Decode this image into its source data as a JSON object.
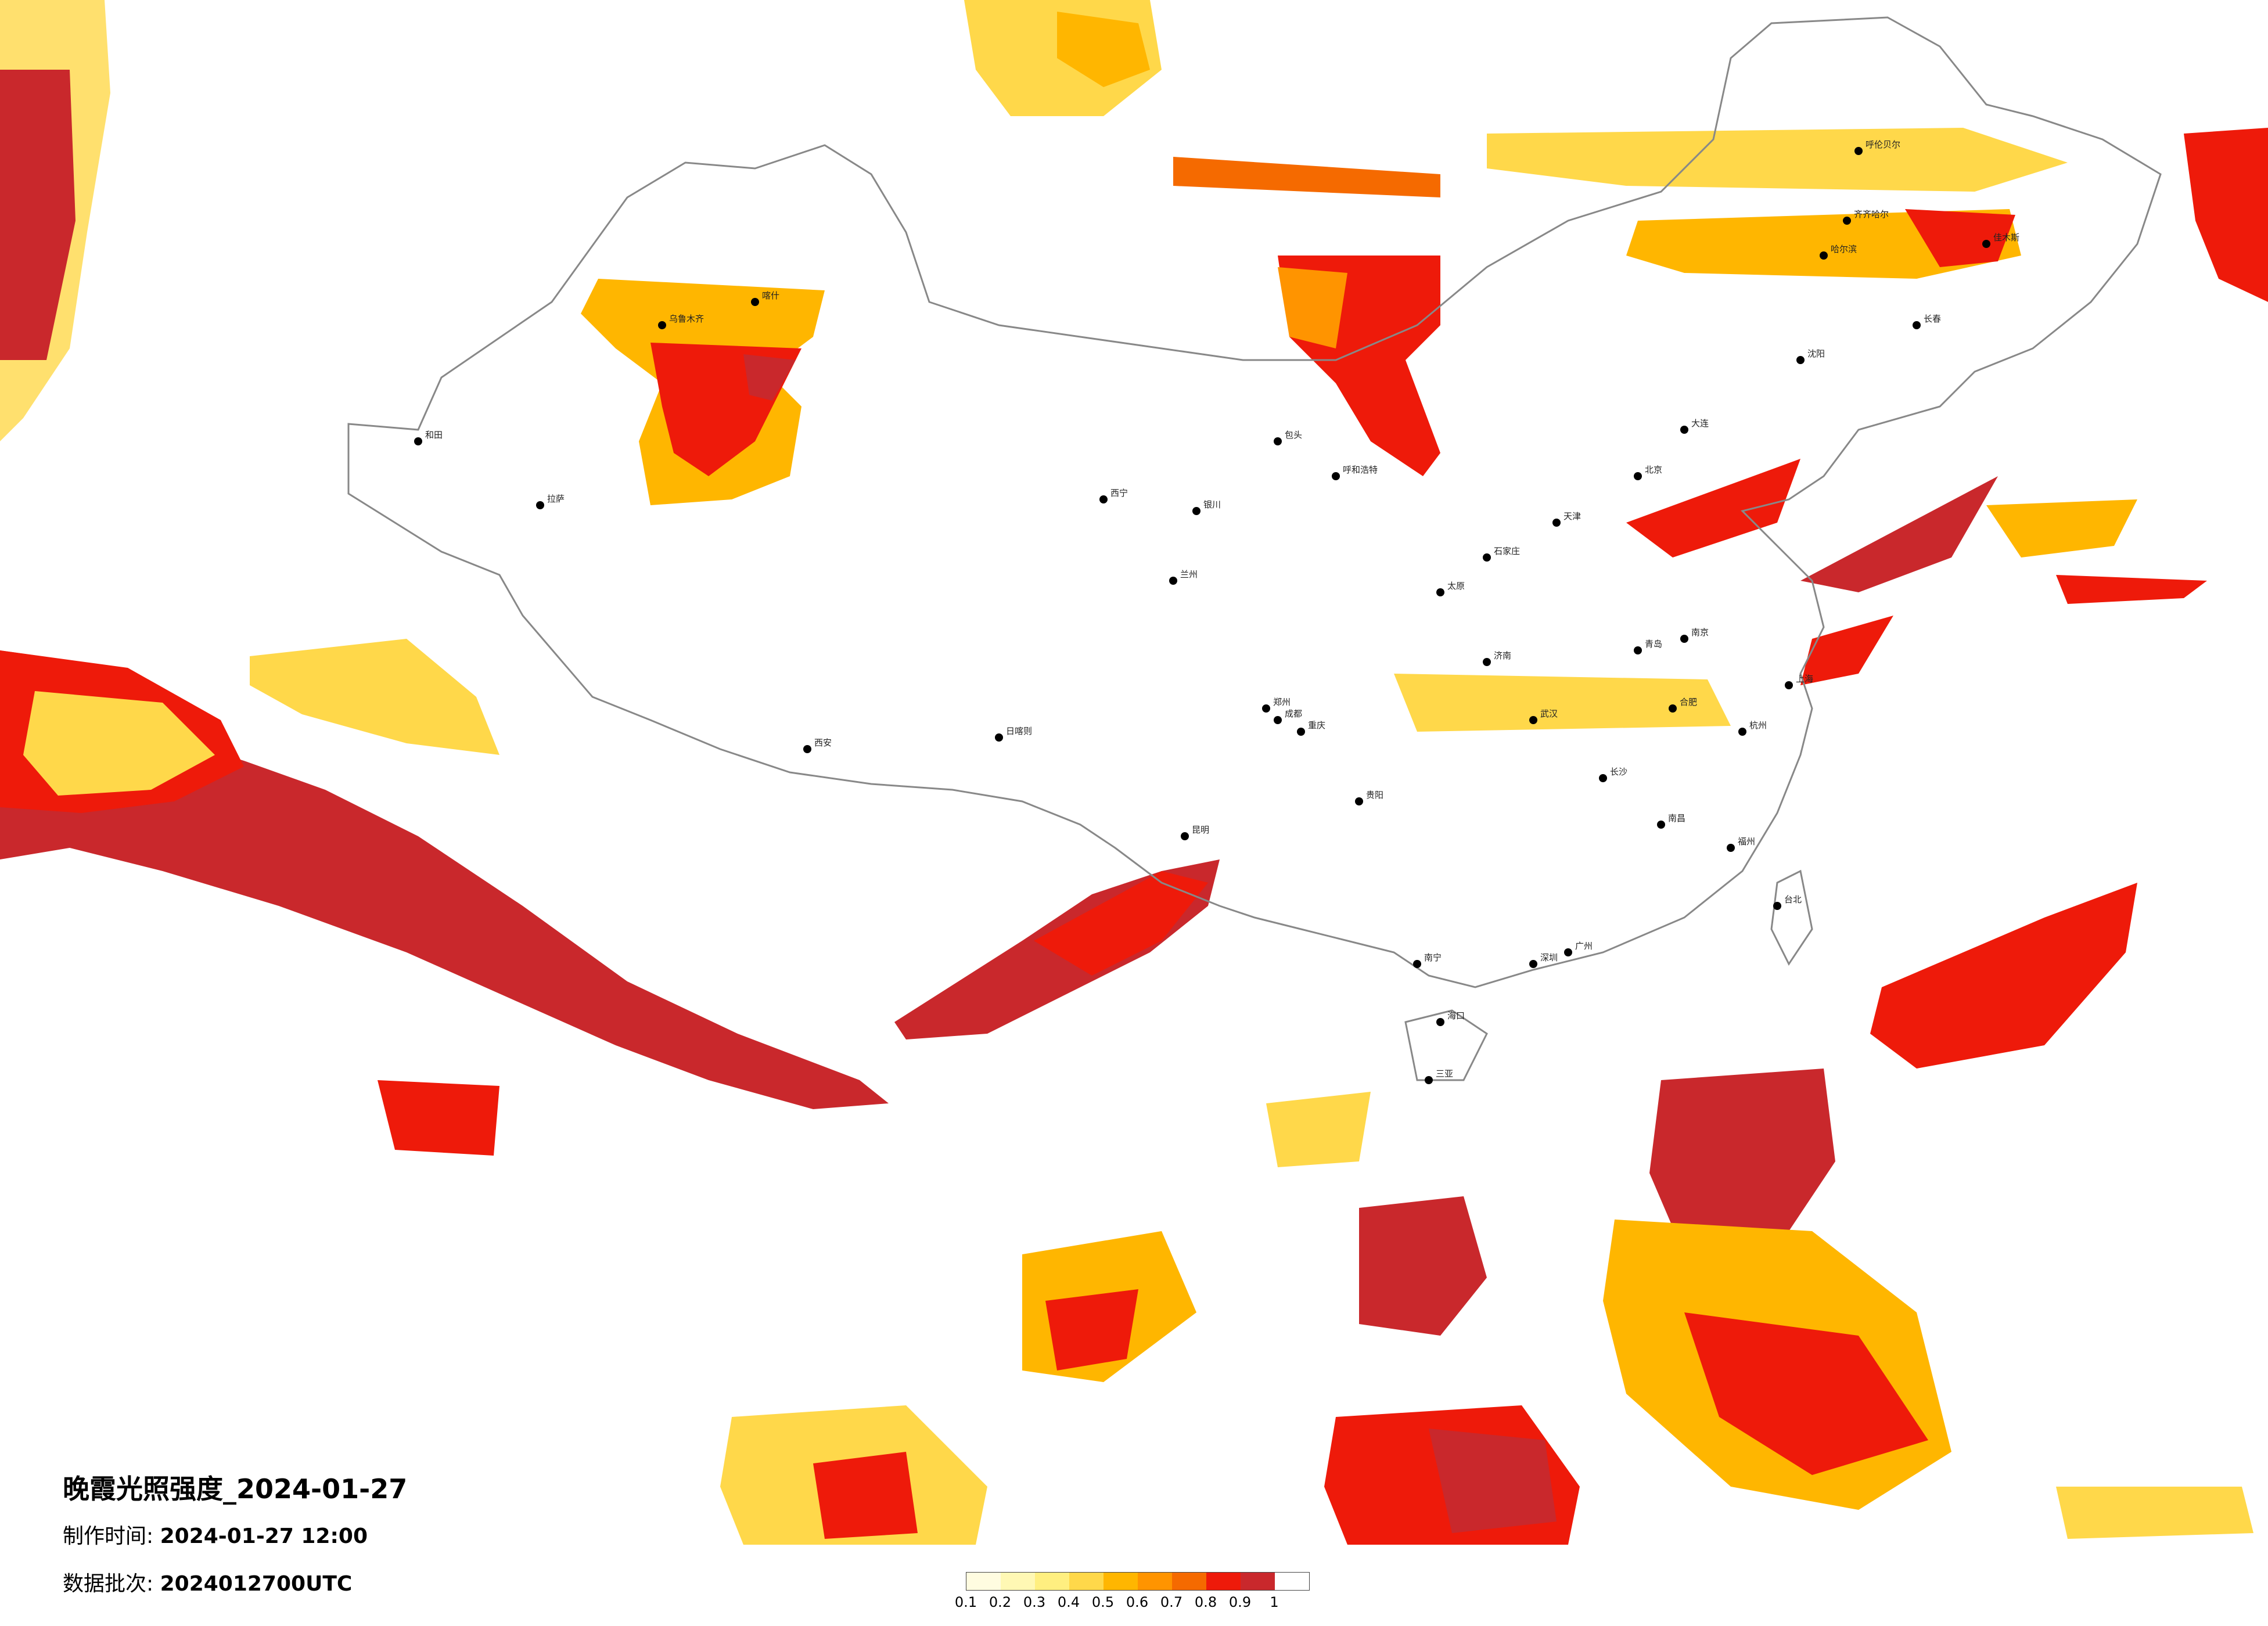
{
  "title": "晚霞光照强度_2024-01-27",
  "made_time": {
    "label": "制作时间:",
    "value": "2024-01-27 12:00"
  },
  "batch": {
    "label": "数据批次:",
    "value": "2024012700UTC"
  },
  "legend": {
    "colors": [
      "#fffce0",
      "#fff8b4",
      "#ffef80",
      "#ffd84a",
      "#ffb600",
      "#ff9400",
      "#f56a00",
      "#ee1a0a",
      "#c9282c"
    ],
    "ticks": [
      "0.1",
      "0.2",
      "0.3",
      "0.4",
      "0.5",
      "0.6",
      "0.7",
      "0.8",
      "0.9",
      "1"
    ]
  },
  "cities": [
    "呼伦贝尔",
    "齐齐哈尔",
    "哈尔滨",
    "佳木斯",
    "长春",
    "沈阳",
    "大连",
    "北京",
    "天津",
    "石家庄",
    "太原",
    "呼和浩特",
    "包头",
    "银川",
    "兰州",
    "西宁",
    "乌鲁木齐",
    "喀什",
    "和田",
    "拉萨",
    "日喀则",
    "西安",
    "郑州",
    "济南",
    "青岛",
    "南京",
    "上海",
    "杭州",
    "合肥",
    "武汉",
    "长沙",
    "南昌",
    "福州",
    "台北",
    "广州",
    "深圳",
    "南宁",
    "海口",
    "贵阳",
    "昆明",
    "成都",
    "重庆",
    "三亚"
  ]
}
